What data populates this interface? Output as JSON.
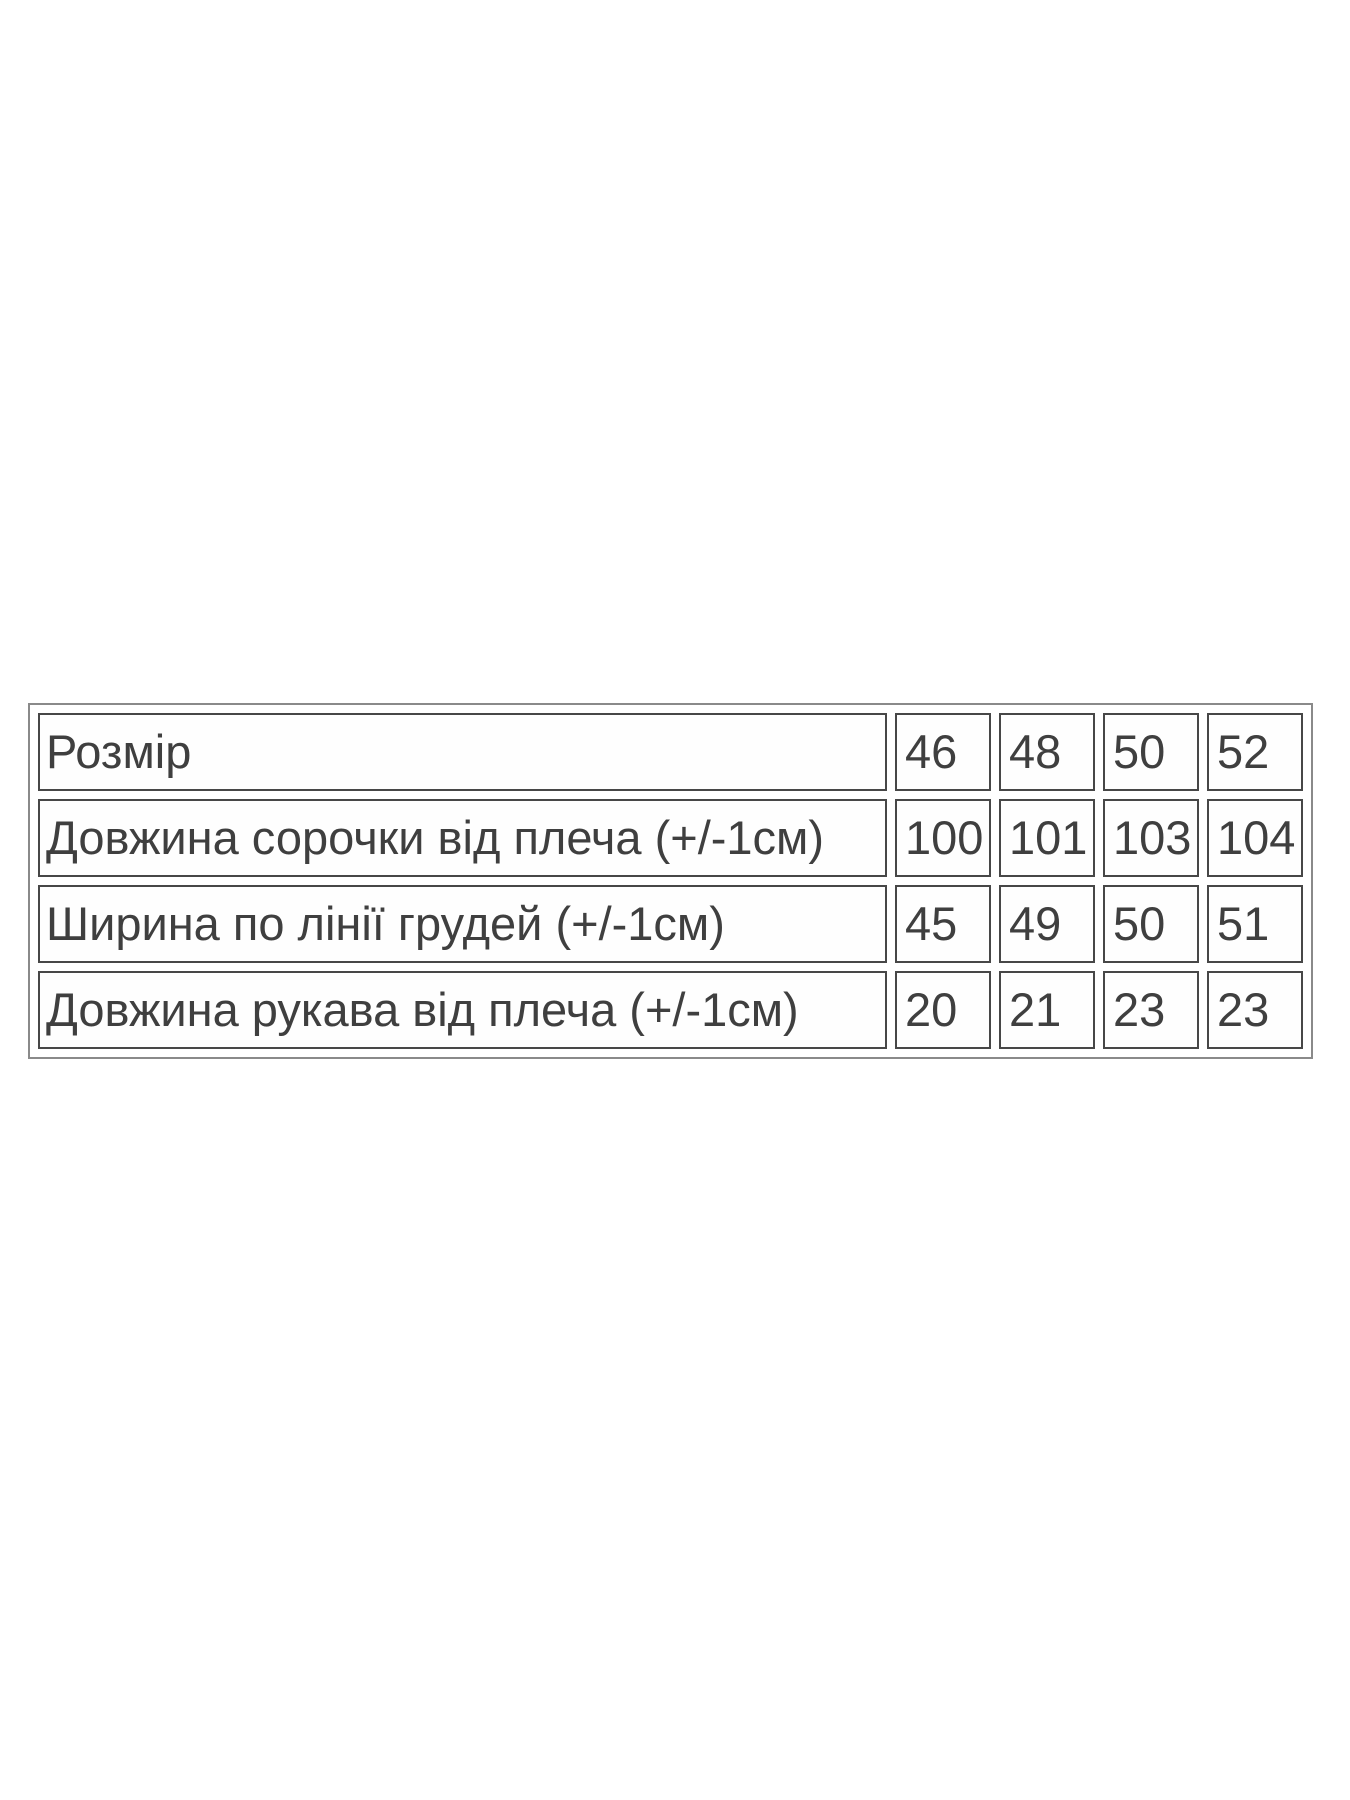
{
  "page": {
    "background_color": "#ffffff",
    "description": "Product size chart table (Ukrainian) on a blank white page"
  },
  "colors": {
    "outer_border": "#8a8a8a",
    "cell_border": "#474747",
    "text": "#3f3f3f",
    "cell_background": "#fefefe"
  },
  "table": {
    "rows": [
      {
        "label": "Розмір",
        "values": [
          "46",
          "48",
          "50",
          "52"
        ]
      },
      {
        "label": "Довжина сорочки від плеча (+/-1см)",
        "values": [
          "100",
          "101",
          "103",
          "104"
        ]
      },
      {
        "label": "Ширина по лінії грудей (+/-1см)",
        "values": [
          "45",
          "49",
          "50",
          "51"
        ]
      },
      {
        "label": "Довжина рукава від плеча (+/-1см)",
        "values": [
          "20",
          "21",
          "23",
          "23"
        ]
      }
    ]
  },
  "chart_data": {
    "type": "table",
    "title": "",
    "row_headers": [
      "Розмір",
      "Довжина сорочки від плеча (+/-1см)",
      "Ширина по лінії грудей (+/-1см)",
      "Довжина рукава від плеча (+/-1см)"
    ],
    "sizes": [
      46,
      48,
      50,
      52
    ],
    "shirt_length_from_shoulder_cm": [
      100,
      101,
      103,
      104
    ],
    "chest_line_width_cm": [
      45,
      49,
      50,
      51
    ],
    "sleeve_length_from_shoulder_cm": [
      20,
      21,
      23,
      23
    ]
  }
}
